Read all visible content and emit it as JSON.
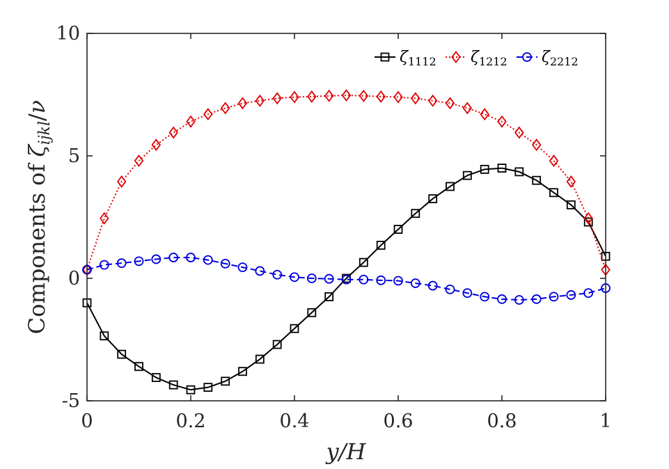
{
  "chart_data": {
    "type": "line",
    "xlabel": "y/H",
    "ylabel": "Components of ζijkl/ν",
    "xlim": [
      0,
      1
    ],
    "ylim": [
      -5,
      10
    ],
    "xticks": [
      "0",
      "0.2",
      "0.4",
      "0.6",
      "0.8",
      "1"
    ],
    "yticks": [
      "-5",
      "0",
      "5",
      "10"
    ],
    "grid": false,
    "legend_position": "top-right",
    "x": [
      0,
      0.0333,
      0.0667,
      0.1,
      0.1333,
      0.1667,
      0.2,
      0.2333,
      0.2667,
      0.3,
      0.3333,
      0.3667,
      0.4,
      0.4333,
      0.4667,
      0.5,
      0.5333,
      0.5667,
      0.6,
      0.6333,
      0.6667,
      0.7,
      0.7333,
      0.7667,
      0.8,
      0.8333,
      0.8667,
      0.9,
      0.9333,
      0.9667,
      1
    ],
    "series": [
      {
        "name": "ζ1112",
        "color": "#000000",
        "marker": "square",
        "linestyle": "solid",
        "values": [
          -1.0,
          -2.35,
          -3.1,
          -3.6,
          -4.05,
          -4.35,
          -4.55,
          -4.45,
          -4.2,
          -3.8,
          -3.3,
          -2.7,
          -2.05,
          -1.4,
          -0.75,
          0.0,
          0.65,
          1.35,
          2.0,
          2.65,
          3.25,
          3.75,
          4.2,
          4.45,
          4.5,
          4.35,
          4.0,
          3.5,
          3.0,
          2.3,
          0.9
        ]
      },
      {
        "name": "ζ1212",
        "color": "#e00000",
        "marker": "diamond",
        "linestyle": "dotted",
        "values": [
          0.35,
          2.45,
          3.95,
          4.8,
          5.45,
          5.95,
          6.4,
          6.7,
          6.95,
          7.15,
          7.25,
          7.35,
          7.4,
          7.42,
          7.45,
          7.47,
          7.45,
          7.42,
          7.4,
          7.35,
          7.25,
          7.15,
          6.95,
          6.7,
          6.4,
          5.95,
          5.45,
          4.8,
          3.95,
          2.45,
          0.35
        ]
      },
      {
        "name": "ζ2212",
        "color": "#0000dd",
        "marker": "circle",
        "linestyle": "dashed",
        "values": [
          0.35,
          0.55,
          0.62,
          0.7,
          0.78,
          0.85,
          0.85,
          0.75,
          0.6,
          0.45,
          0.3,
          0.15,
          0.05,
          0.0,
          -0.02,
          -0.05,
          -0.05,
          -0.08,
          -0.1,
          -0.2,
          -0.3,
          -0.45,
          -0.6,
          -0.75,
          -0.85,
          -0.88,
          -0.85,
          -0.75,
          -0.68,
          -0.6,
          -0.4
        ]
      }
    ]
  }
}
